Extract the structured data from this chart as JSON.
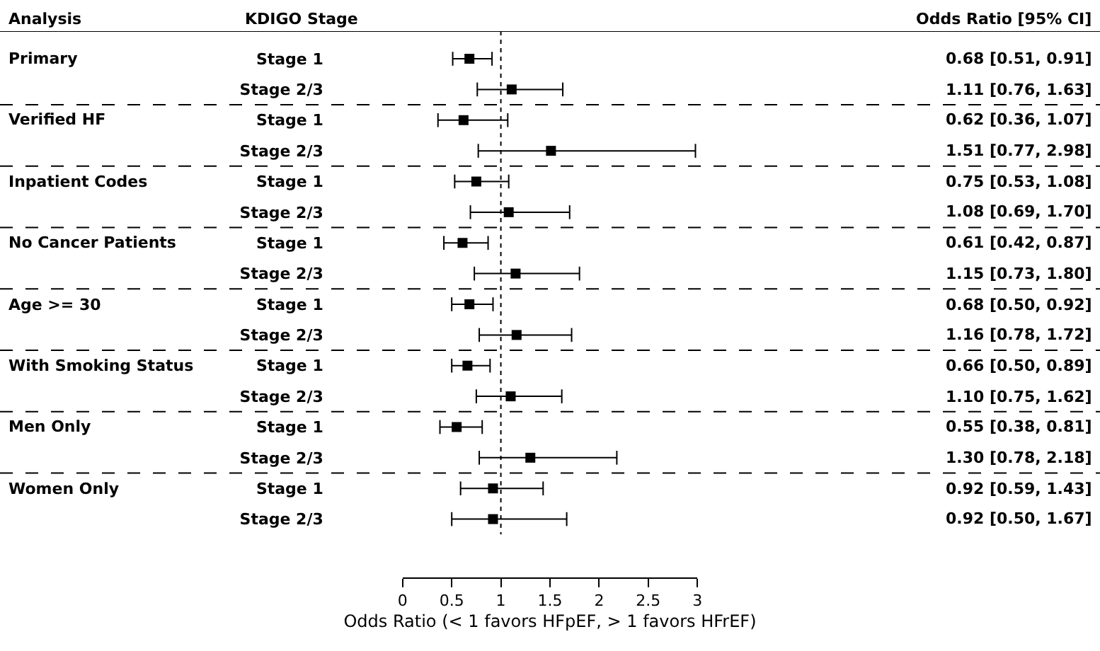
{
  "chart_data": {
    "type": "scatter",
    "orientation": "horizontal",
    "xlabel": "Odds Ratio (< 1 favors HFpEF, > 1 favors HFrEF)",
    "annotations": [
      "Analysis",
      "KDIGO Stage",
      "Odds Ratio [95% CI]",
      "Primary",
      "Verified HF",
      "Inpatient Codes",
      "No Cancer Patients",
      "Age >= 30",
      "With Smoking Status",
      "Men Only",
      "Women Only"
    ],
    "categories": [
      "Stage 1",
      "Stage 2/3",
      "Stage 1",
      "Stage 2/3",
      "Stage 1",
      "Stage 2/3",
      "Stage 1",
      "Stage 2/3",
      "Stage 1",
      "Stage 2/3",
      "Stage 1",
      "Stage 2/3",
      "Stage 1",
      "Stage 2/3",
      "Stage 1",
      "Stage 2/3"
    ],
    "values": [
      0.68,
      1.11,
      0.62,
      1.51,
      0.75,
      1.08,
      0.61,
      1.15,
      0.68,
      1.16,
      0.66,
      1.1,
      0.55,
      1.3,
      0.92,
      0.92
    ],
    "errors": [
      [
        0.51,
        0.91
      ],
      [
        0.76,
        1.63
      ],
      [
        0.36,
        1.07
      ],
      [
        0.77,
        2.98
      ],
      [
        0.53,
        1.08
      ],
      [
        0.69,
        1.7
      ],
      [
        0.42,
        0.87
      ],
      [
        0.73,
        1.8
      ],
      [
        0.5,
        0.92
      ],
      [
        0.78,
        1.72
      ],
      [
        0.5,
        0.89
      ],
      [
        0.75,
        1.62
      ],
      [
        0.38,
        0.81
      ],
      [
        0.78,
        2.18
      ],
      [
        0.59,
        1.43
      ],
      [
        0.5,
        1.67
      ]
    ],
    "value_labels": [
      "0.68 [0.51, 0.91]",
      "1.11 [0.76, 1.63]",
      "0.62 [0.36, 1.07]",
      "1.51 [0.77, 2.98]",
      "0.75 [0.53, 1.08]",
      "1.08 [0.69, 1.70]",
      "0.61 [0.42, 0.87]",
      "1.15 [0.73, 1.80]",
      "0.68 [0.50, 0.92]",
      "1.16 [0.78, 1.72]",
      "0.66 [0.50, 0.89]",
      "1.10 [0.75, 1.62]",
      "0.55 [0.38, 0.81]",
      "1.30 [0.78, 2.18]",
      "0.92 [0.59, 1.43]",
      "0.92 [0.50, 1.67]"
    ],
    "color": "#000000",
    "marker": "square",
    "xlim": [
      0,
      3
    ],
    "xticks": [
      0,
      0.5,
      1,
      1.5,
      2,
      2.5,
      3
    ],
    "ref_lines": [
      {
        "axis": "x",
        "value": 1,
        "line_style": "dotted",
        "color": "#000000"
      }
    ],
    "grid": false,
    "legend": false
  }
}
